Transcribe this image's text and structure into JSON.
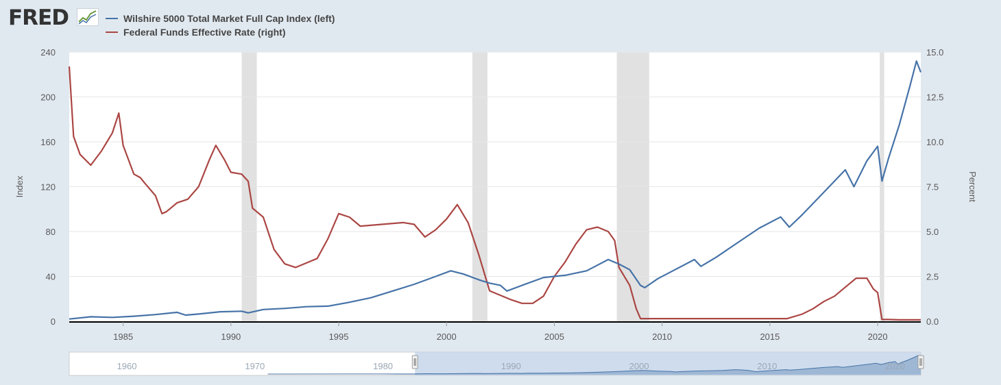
{
  "header": {
    "logo_text": "FRED"
  },
  "colors": {
    "wilshire": "#4572a7",
    "fedfunds": "#aa4643",
    "recession": "#e1e1e1",
    "grid": "#e6e6e6",
    "navigator_mask": "#c6d6ea"
  },
  "chart_data": {
    "type": "line",
    "legend_position": "top-left",
    "grid": true,
    "xlim": [
      1982.5,
      2022.0
    ],
    "x_ticks": [
      "1985",
      "1990",
      "1995",
      "2000",
      "2005",
      "2010",
      "2015",
      "2020"
    ],
    "x_tick_values": [
      1985,
      1990,
      1995,
      2000,
      2005,
      2010,
      2015,
      2020
    ],
    "y_left": {
      "label": "Index",
      "lim": [
        0,
        240
      ],
      "ticks": [
        "0",
        "40",
        "80",
        "120",
        "160",
        "200",
        "240"
      ],
      "tick_values": [
        0,
        40,
        80,
        120,
        160,
        200,
        240
      ]
    },
    "y_right": {
      "label": "Percent",
      "lim": [
        0,
        15
      ],
      "ticks": [
        "0.0",
        "2.5",
        "5.0",
        "7.5",
        "10.0",
        "12.5",
        "15.0"
      ],
      "tick_values": [
        0,
        2.5,
        5,
        7.5,
        10,
        12.5,
        15
      ]
    },
    "recessions": [
      [
        1990.5,
        1991.2
      ],
      [
        2001.2,
        2001.9
      ],
      [
        2007.9,
        2009.4
      ],
      [
        2020.1,
        2020.3
      ]
    ],
    "series": [
      {
        "name": "Wilshire 5000 Total Market Full Cap Index (left)",
        "axis": "left",
        "x": [
          1982.5,
          1983.5,
          1984.5,
          1985.5,
          1986.5,
          1987.5,
          1987.9,
          1988.5,
          1989.5,
          1990.5,
          1990.8,
          1991.5,
          1992.5,
          1993.5,
          1994.5,
          1995.5,
          1996.5,
          1997.5,
          1998.5,
          1999.5,
          2000.2,
          2000.8,
          2001.5,
          2002.0,
          2002.5,
          2002.8,
          2003.5,
          2004.5,
          2005.5,
          2006.5,
          2007.5,
          2008.0,
          2008.5,
          2009.0,
          2009.2,
          2009.8,
          2010.5,
          2011.5,
          2011.8,
          2012.5,
          2013.5,
          2014.5,
          2015.5,
          2015.9,
          2016.5,
          2017.5,
          2018.5,
          2018.9,
          2019.5,
          2020.0,
          2020.2,
          2020.5,
          2021.0,
          2021.5,
          2021.8,
          2022.0
        ],
        "y": [
          2,
          4,
          3.5,
          4.5,
          6,
          8,
          5.5,
          6.5,
          8.5,
          9,
          7.5,
          10.5,
          11.5,
          13,
          13.5,
          17,
          21,
          27,
          33,
          40,
          45,
          42,
          37,
          34,
          32,
          27,
          32,
          39,
          41,
          45,
          55,
          51,
          46,
          32,
          30,
          38,
          45,
          55,
          49,
          57,
          70,
          83,
          93,
          84,
          95,
          115,
          135,
          120,
          143,
          156,
          125,
          145,
          175,
          210,
          232,
          222
        ]
      },
      {
        "name": "Federal Funds Effective Rate (right)",
        "axis": "right",
        "x": [
          1982.5,
          1982.7,
          1983.0,
          1983.5,
          1984.0,
          1984.5,
          1984.8,
          1985.0,
          1985.5,
          1985.8,
          1986.0,
          1986.5,
          1986.8,
          1987.0,
          1987.5,
          1988.0,
          1988.5,
          1989.0,
          1989.3,
          1989.7,
          1990.0,
          1990.5,
          1990.8,
          1991.0,
          1991.5,
          1992.0,
          1992.5,
          1993.0,
          1994.0,
          1994.5,
          1995.0,
          1995.5,
          1996.0,
          1997.0,
          1998.0,
          1998.5,
          1999.0,
          1999.5,
          2000.0,
          2000.5,
          2001.0,
          2001.5,
          2002.0,
          2003.0,
          2003.5,
          2004.0,
          2004.5,
          2005.0,
          2005.5,
          2006.0,
          2006.5,
          2007.0,
          2007.5,
          2007.8,
          2008.0,
          2008.5,
          2008.8,
          2009.0,
          2009.5,
          2010.0,
          2015.8,
          2016.5,
          2017.0,
          2017.5,
          2018.0,
          2018.5,
          2019.0,
          2019.5,
          2019.8,
          2020.0,
          2020.2,
          2020.5,
          2021.0,
          2022.0
        ],
        "y": [
          14.2,
          10.3,
          9.3,
          8.7,
          9.5,
          10.5,
          11.6,
          9.8,
          8.2,
          8.0,
          7.7,
          7.0,
          6.0,
          6.1,
          6.6,
          6.8,
          7.5,
          9.0,
          9.8,
          9.0,
          8.3,
          8.2,
          7.8,
          6.3,
          5.8,
          4.0,
          3.2,
          3.0,
          3.5,
          4.6,
          6.0,
          5.8,
          5.3,
          5.4,
          5.5,
          5.4,
          4.7,
          5.1,
          5.7,
          6.5,
          5.5,
          3.7,
          1.7,
          1.2,
          1.0,
          1.0,
          1.4,
          2.5,
          3.3,
          4.3,
          5.1,
          5.25,
          5.0,
          4.5,
          3.0,
          2.0,
          0.7,
          0.15,
          0.15,
          0.15,
          0.15,
          0.4,
          0.7,
          1.1,
          1.4,
          1.9,
          2.4,
          2.4,
          1.8,
          1.6,
          0.1,
          0.1,
          0.08,
          0.08
        ]
      }
    ]
  },
  "navigator": {
    "ticks": [
      "1960",
      "1970",
      "1980",
      "1990",
      "2000",
      "2010",
      "2020"
    ],
    "tick_values": [
      1960,
      1970,
      1980,
      1990,
      2000,
      2010,
      2020
    ],
    "xlim": [
      1955.5,
      2022.0
    ],
    "selected": [
      1982.5,
      2022.0
    ]
  }
}
